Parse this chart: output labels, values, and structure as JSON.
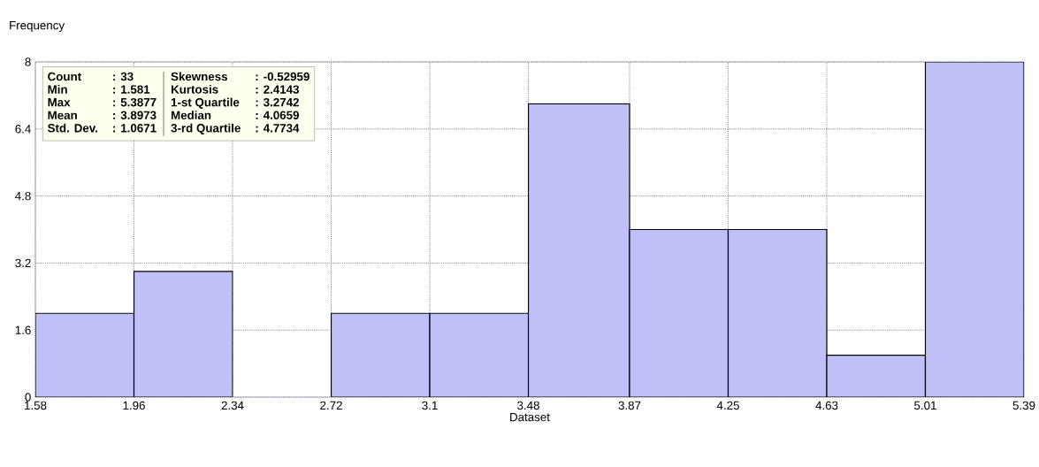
{
  "chart_data": {
    "type": "histogram",
    "xlabel": "Dataset",
    "ylabel": "Frequency",
    "bins": [
      1.58,
      1.96,
      2.34,
      2.72,
      3.1,
      3.48,
      3.87,
      4.25,
      4.63,
      5.01,
      5.39
    ],
    "values": [
      2,
      3,
      0,
      2,
      2,
      7,
      4,
      4,
      1,
      8
    ],
    "color": "#c0c0f8",
    "xlim": [
      1.58,
      5.39
    ],
    "xticks": [
      1.58,
      1.96,
      2.34,
      2.72,
      3.1,
      3.48,
      3.87,
      4.25,
      4.63,
      5.01,
      5.39
    ],
    "ylim": [
      0,
      8
    ],
    "yticks": [
      0,
      1.6,
      3.2,
      4.8,
      6.4,
      8
    ],
    "grid": true,
    "annotations": [
      "Count",
      ": 33",
      "Skewness",
      ": -0.52959",
      "Min",
      ": 1.581",
      "Kurtosis",
      ": 2.4143",
      "Max",
      ": 5.3877",
      "1-st Quartile",
      ": 3.2742",
      "Mean",
      ": 3.8973",
      "Median",
      ": 4.0659",
      "Std. Dev.",
      ": 1.0671",
      "3-rd Quartile",
      ": 4.7734"
    ]
  }
}
